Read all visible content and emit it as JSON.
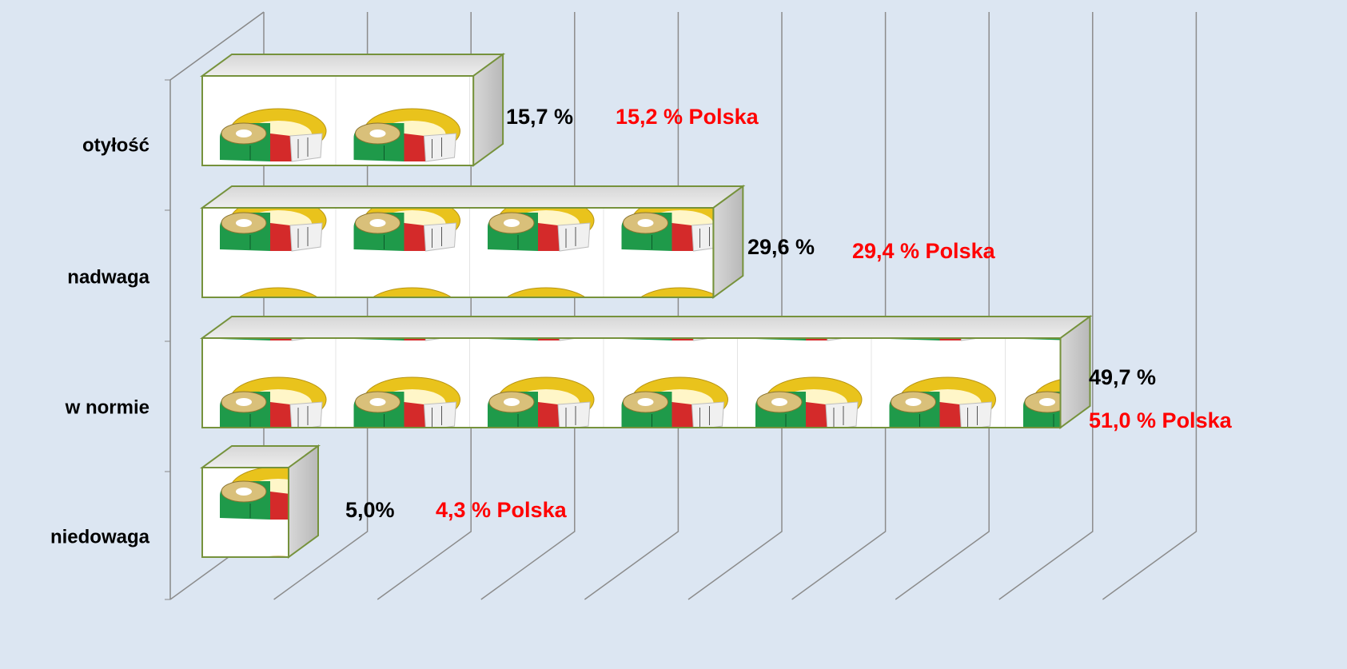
{
  "chart_data": {
    "type": "bar3d",
    "categories": [
      "otyłość",
      "nadwaga",
      "w normie",
      "niedowaga"
    ],
    "values": [
      15.7,
      29.6,
      49.7,
      5.0
    ],
    "value_labels": [
      "15,7 %",
      "29,6 %",
      "49,7 %",
      "5,0%"
    ],
    "annotations": [
      "15,2 % Polska",
      "29,4 % Polska",
      "51,0 % Polska",
      "4,3 % Polska"
    ],
    "color": "#76923c",
    "xlim": [
      0,
      60
    ],
    "xticks": [
      0,
      6,
      12,
      18,
      24,
      30,
      36,
      42,
      48,
      54
    ],
    "grid": true
  }
}
